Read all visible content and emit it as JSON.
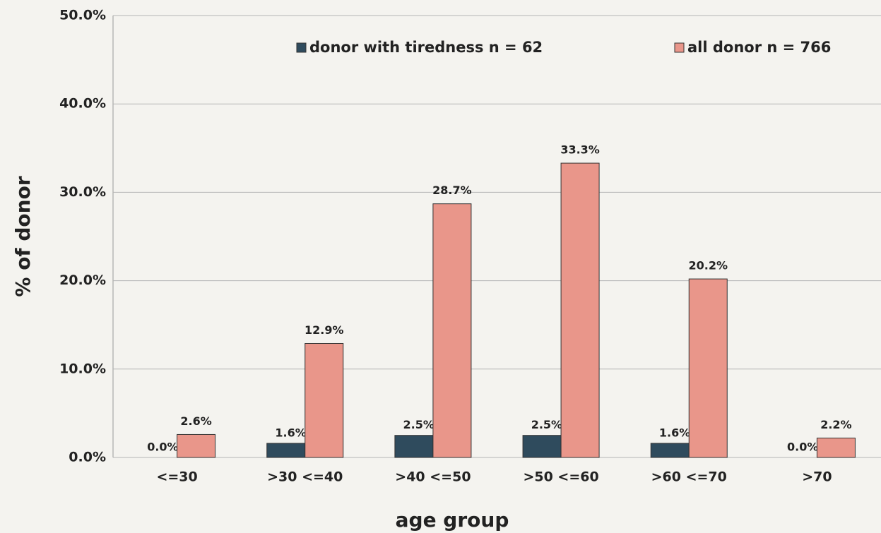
{
  "chart_data": {
    "type": "bar",
    "x_label": "age group",
    "y_label": "% of donor",
    "categories": [
      "<=30",
      ">30 <=40",
      ">40 <=50",
      ">50 <=60",
      ">60 <=70",
      ">70"
    ],
    "series": [
      {
        "name": "donor with tiredness n = 62",
        "color": "#2f4b5d",
        "values": [
          0.0,
          1.6,
          2.5,
          2.5,
          1.6,
          0.0
        ],
        "value_labels": [
          "0.0%",
          "1.6%",
          "2.5%",
          "2.5%",
          "1.6%",
          "0.0%"
        ]
      },
      {
        "name": "all donor n = 766",
        "color": "#e9968a",
        "values": [
          2.6,
          12.9,
          28.7,
          33.3,
          20.2,
          2.2
        ],
        "value_labels": [
          "2.6%",
          "12.9%",
          "28.7%",
          "33.3%",
          "20.2%",
          "2.2%"
        ]
      }
    ],
    "ylim": [
      0,
      50
    ],
    "yticks": [
      {
        "value": 0,
        "label": "0.0%"
      },
      {
        "value": 10,
        "label": "10.0%"
      },
      {
        "value": 20,
        "label": "20.0%"
      },
      {
        "value": 30,
        "label": "30.0%"
      },
      {
        "value": 40,
        "label": "40.0%"
      },
      {
        "value": 50,
        "label": "50.0%"
      }
    ],
    "grid": true,
    "legend": "top"
  }
}
